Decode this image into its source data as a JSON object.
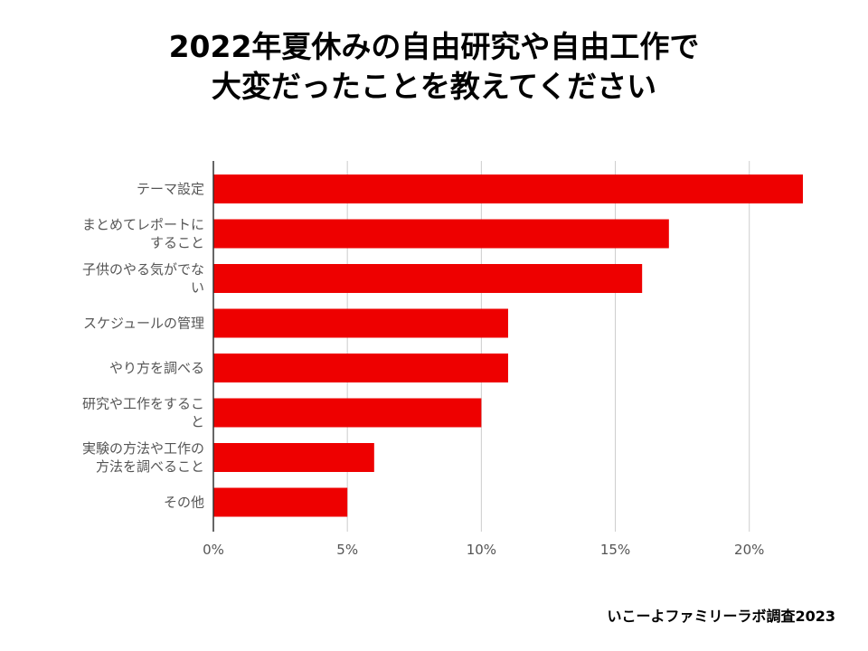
{
  "title_line1": "2022年夏休みの自由研究や自由工作で",
  "title_line2": "大変だったことを教えてください",
  "source": "いこーよファミリーラボ調査2023",
  "chart_data": {
    "type": "bar",
    "orientation": "horizontal",
    "categories": [
      [
        "テーマ設定"
      ],
      [
        "まとめてレポートに",
        "すること"
      ],
      [
        "子供のやる気がでな",
        "い"
      ],
      [
        "スケジュールの管理"
      ],
      [
        "やり方を調べる"
      ],
      [
        "研究や工作をするこ",
        "と"
      ],
      [
        "実験の方法や工作の",
        "方法を調べること"
      ],
      [
        "その他"
      ]
    ],
    "values": [
      22,
      17,
      16,
      11,
      11,
      10,
      6,
      5
    ],
    "unit": "%",
    "xlim": [
      0,
      22
    ],
    "xticks": [
      0,
      5,
      10,
      15,
      20
    ],
    "xtick_labels": [
      "0%",
      "5%",
      "10%",
      "15%",
      "20%"
    ],
    "grid": true,
    "bar_color": "#ee0000"
  }
}
